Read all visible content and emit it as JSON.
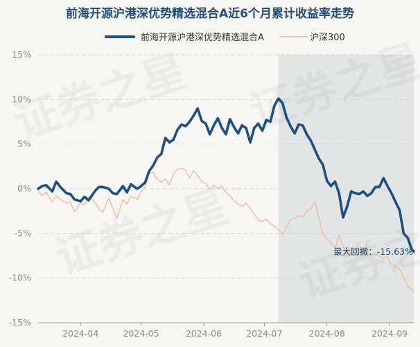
{
  "chart_data": {
    "type": "line",
    "title": "前海开源沪港深优势精选混合A近6个月累计收益率走势",
    "watermark": "证券之星",
    "legend_position": "top",
    "grid": true,
    "y_unit": "%",
    "ylim": [
      -15,
      15
    ],
    "y_ticks": [
      {
        "value": 15,
        "label": "15%"
      },
      {
        "value": 10,
        "label": "10%"
      },
      {
        "value": 5,
        "label": "5%"
      },
      {
        "value": 0,
        "label": "0%"
      },
      {
        "value": -5,
        "label": "-5%"
      },
      {
        "value": -10,
        "label": "-10%"
      },
      {
        "value": -15,
        "label": "-15%"
      }
    ],
    "xlim": [
      "2024-03-11",
      "2024-09-13"
    ],
    "x_ticks": [
      "2024-04",
      "2024-05",
      "2024-06",
      "2024-07",
      "2024-08",
      "2024-09"
    ],
    "highlight_range": [
      "2024-07-08",
      "2024-09-13"
    ],
    "annotation": {
      "label": "最大回撤：",
      "value": "-15.63%"
    },
    "series": [
      {
        "name": "前海开源沪港深优势精选混合A",
        "color": "#1d4f82",
        "points": [
          [
            "2024-03-11",
            0.0
          ],
          [
            "2024-03-13",
            0.3
          ],
          [
            "2024-03-15",
            0.4
          ],
          [
            "2024-03-18",
            -0.3
          ],
          [
            "2024-03-20",
            0.8
          ],
          [
            "2024-03-22",
            0.2
          ],
          [
            "2024-03-25",
            -0.5
          ],
          [
            "2024-03-27",
            -0.6
          ],
          [
            "2024-03-29",
            -1.2
          ],
          [
            "2024-04-01",
            -1.4
          ],
          [
            "2024-04-03",
            -0.9
          ],
          [
            "2024-04-05",
            -1.3
          ],
          [
            "2024-04-08",
            -0.3
          ],
          [
            "2024-04-10",
            0.2
          ],
          [
            "2024-04-12",
            0.2
          ],
          [
            "2024-04-15",
            0.0
          ],
          [
            "2024-04-17",
            -0.5
          ],
          [
            "2024-04-19",
            -0.6
          ],
          [
            "2024-04-22",
            0.3
          ],
          [
            "2024-04-24",
            -0.4
          ],
          [
            "2024-04-26",
            0.5
          ],
          [
            "2024-04-29",
            0.0
          ],
          [
            "2024-05-01",
            0.3
          ],
          [
            "2024-05-03",
            0.7
          ],
          [
            "2024-05-05",
            2.0
          ],
          [
            "2024-05-07",
            2.6
          ],
          [
            "2024-05-09",
            3.5
          ],
          [
            "2024-05-11",
            3.9
          ],
          [
            "2024-05-13",
            5.7
          ],
          [
            "2024-05-15",
            5.2
          ],
          [
            "2024-05-17",
            5.5
          ],
          [
            "2024-05-19",
            6.6
          ],
          [
            "2024-05-21",
            7.2
          ],
          [
            "2024-05-23",
            7.0
          ],
          [
            "2024-05-25",
            7.5
          ],
          [
            "2024-05-27",
            8.2
          ],
          [
            "2024-05-29",
            9.0
          ],
          [
            "2024-05-31",
            7.6
          ],
          [
            "2024-06-02",
            7.3
          ],
          [
            "2024-06-04",
            6.1
          ],
          [
            "2024-06-06",
            7.1
          ],
          [
            "2024-06-08",
            7.9
          ],
          [
            "2024-06-10",
            6.8
          ],
          [
            "2024-06-12",
            6.1
          ],
          [
            "2024-06-14",
            7.8
          ],
          [
            "2024-06-16",
            6.9
          ],
          [
            "2024-06-18",
            6.2
          ],
          [
            "2024-06-20",
            7.1
          ],
          [
            "2024-06-22",
            6.8
          ],
          [
            "2024-06-24",
            5.2
          ],
          [
            "2024-06-26",
            6.8
          ],
          [
            "2024-06-28",
            7.3
          ],
          [
            "2024-06-30",
            6.5
          ],
          [
            "2024-07-02",
            7.7
          ],
          [
            "2024-07-04",
            7.5
          ],
          [
            "2024-07-06",
            9.3
          ],
          [
            "2024-07-08",
            10.1
          ],
          [
            "2024-07-10",
            9.6
          ],
          [
            "2024-07-12",
            8.0
          ],
          [
            "2024-07-14",
            7.0
          ],
          [
            "2024-07-16",
            6.2
          ],
          [
            "2024-07-18",
            7.2
          ],
          [
            "2024-07-20",
            7.1
          ],
          [
            "2024-07-22",
            6.1
          ],
          [
            "2024-07-24",
            5.4
          ],
          [
            "2024-07-26",
            4.4
          ],
          [
            "2024-07-28",
            3.4
          ],
          [
            "2024-07-30",
            2.7
          ],
          [
            "2024-08-01",
            0.9
          ],
          [
            "2024-08-03",
            0.3
          ],
          [
            "2024-08-05",
            0.8
          ],
          [
            "2024-08-07",
            -0.5
          ],
          [
            "2024-08-09",
            -3.2
          ],
          [
            "2024-08-11",
            -2.0
          ],
          [
            "2024-08-13",
            -0.3
          ],
          [
            "2024-08-15",
            -0.5
          ],
          [
            "2024-08-17",
            -0.6
          ],
          [
            "2024-08-19",
            -0.3
          ],
          [
            "2024-08-21",
            -0.8
          ],
          [
            "2024-08-23",
            -0.5
          ],
          [
            "2024-08-25",
            0.2
          ],
          [
            "2024-08-27",
            0.2
          ],
          [
            "2024-08-29",
            1.2
          ],
          [
            "2024-08-31",
            0.3
          ],
          [
            "2024-09-02",
            -0.5
          ],
          [
            "2024-09-04",
            -1.5
          ],
          [
            "2024-09-06",
            -2.4
          ],
          [
            "2024-09-08",
            -5.0
          ],
          [
            "2024-09-10",
            -5.5
          ],
          [
            "2024-09-12",
            -6.8
          ],
          [
            "2024-09-13",
            -7.0
          ]
        ]
      },
      {
        "name": "沪深300",
        "color": "#f0b88b",
        "points": [
          [
            "2024-03-11",
            -0.2
          ],
          [
            "2024-03-13",
            -0.8
          ],
          [
            "2024-03-15",
            -0.4
          ],
          [
            "2024-03-18",
            -1.5
          ],
          [
            "2024-03-20",
            -0.8
          ],
          [
            "2024-03-22",
            -1.2
          ],
          [
            "2024-03-25",
            -1.6
          ],
          [
            "2024-03-27",
            -1.5
          ],
          [
            "2024-03-29",
            -2.6
          ],
          [
            "2024-04-01",
            -1.6
          ],
          [
            "2024-04-03",
            -1.8
          ],
          [
            "2024-04-05",
            -0.9
          ],
          [
            "2024-04-08",
            -1.5
          ],
          [
            "2024-04-10",
            -2.2
          ],
          [
            "2024-04-12",
            -2.6
          ],
          [
            "2024-04-15",
            -1.0
          ],
          [
            "2024-04-17",
            -2.2
          ],
          [
            "2024-04-19",
            -3.3
          ],
          [
            "2024-04-22",
            -1.2
          ],
          [
            "2024-04-24",
            -1.7
          ],
          [
            "2024-04-26",
            -0.8
          ],
          [
            "2024-04-29",
            -1.2
          ],
          [
            "2024-05-01",
            -0.3
          ],
          [
            "2024-05-03",
            0.2
          ],
          [
            "2024-05-05",
            1.8
          ],
          [
            "2024-05-07",
            1.8
          ],
          [
            "2024-05-09",
            1.1
          ],
          [
            "2024-05-11",
            0.7
          ],
          [
            "2024-05-13",
            1.1
          ],
          [
            "2024-05-15",
            0.4
          ],
          [
            "2024-05-17",
            1.6
          ],
          [
            "2024-05-19",
            2.2
          ],
          [
            "2024-05-21",
            2.3
          ],
          [
            "2024-05-23",
            2.1
          ],
          [
            "2024-05-25",
            1.2
          ],
          [
            "2024-05-27",
            2.0
          ],
          [
            "2024-05-29",
            1.5
          ],
          [
            "2024-05-31",
            0.8
          ],
          [
            "2024-06-02",
            0.6
          ],
          [
            "2024-06-04",
            -0.1
          ],
          [
            "2024-06-06",
            0.4
          ],
          [
            "2024-06-08",
            0.0
          ],
          [
            "2024-06-10",
            0.3
          ],
          [
            "2024-06-12",
            -0.4
          ],
          [
            "2024-06-14",
            -0.8
          ],
          [
            "2024-06-16",
            -1.4
          ],
          [
            "2024-06-18",
            -1.7
          ],
          [
            "2024-06-20",
            -2.0
          ],
          [
            "2024-06-22",
            -1.6
          ],
          [
            "2024-06-24",
            -2.2
          ],
          [
            "2024-06-26",
            -2.8
          ],
          [
            "2024-06-28",
            -3.5
          ],
          [
            "2024-06-30",
            -3.7
          ],
          [
            "2024-07-02",
            -3.4
          ],
          [
            "2024-07-04",
            -3.9
          ],
          [
            "2024-07-06",
            -4.2
          ],
          [
            "2024-07-08",
            -4.6
          ],
          [
            "2024-07-10",
            -5.1
          ],
          [
            "2024-07-12",
            -4.3
          ],
          [
            "2024-07-14",
            -3.5
          ],
          [
            "2024-07-16",
            -3.3
          ],
          [
            "2024-07-18",
            -3.0
          ],
          [
            "2024-07-20",
            -3.2
          ],
          [
            "2024-07-22",
            -2.5
          ],
          [
            "2024-07-24",
            -2.3
          ],
          [
            "2024-07-26",
            -1.4
          ],
          [
            "2024-07-28",
            -3.3
          ],
          [
            "2024-07-30",
            -5.0
          ],
          [
            "2024-08-01",
            -5.6
          ],
          [
            "2024-08-03",
            -6.0
          ],
          [
            "2024-08-05",
            -6.7
          ],
          [
            "2024-08-07",
            -5.2
          ],
          [
            "2024-08-09",
            -6.4
          ],
          [
            "2024-08-11",
            -7.6
          ],
          [
            "2024-08-13",
            -7.1
          ],
          [
            "2024-08-15",
            -7.3
          ],
          [
            "2024-08-17",
            -7.2
          ],
          [
            "2024-08-19",
            -7.2
          ],
          [
            "2024-08-21",
            -7.2
          ],
          [
            "2024-08-23",
            -7.4
          ],
          [
            "2024-08-25",
            -7.3
          ],
          [
            "2024-08-27",
            -7.6
          ],
          [
            "2024-08-29",
            -7.8
          ],
          [
            "2024-08-31",
            -7.6
          ],
          [
            "2024-09-02",
            -8.5
          ],
          [
            "2024-09-04",
            -8.8
          ],
          [
            "2024-09-06",
            -9.0
          ],
          [
            "2024-09-08",
            -9.9
          ],
          [
            "2024-09-10",
            -11.0
          ],
          [
            "2024-09-12",
            -11.2
          ],
          [
            "2024-09-13",
            -11.6
          ]
        ]
      }
    ]
  }
}
